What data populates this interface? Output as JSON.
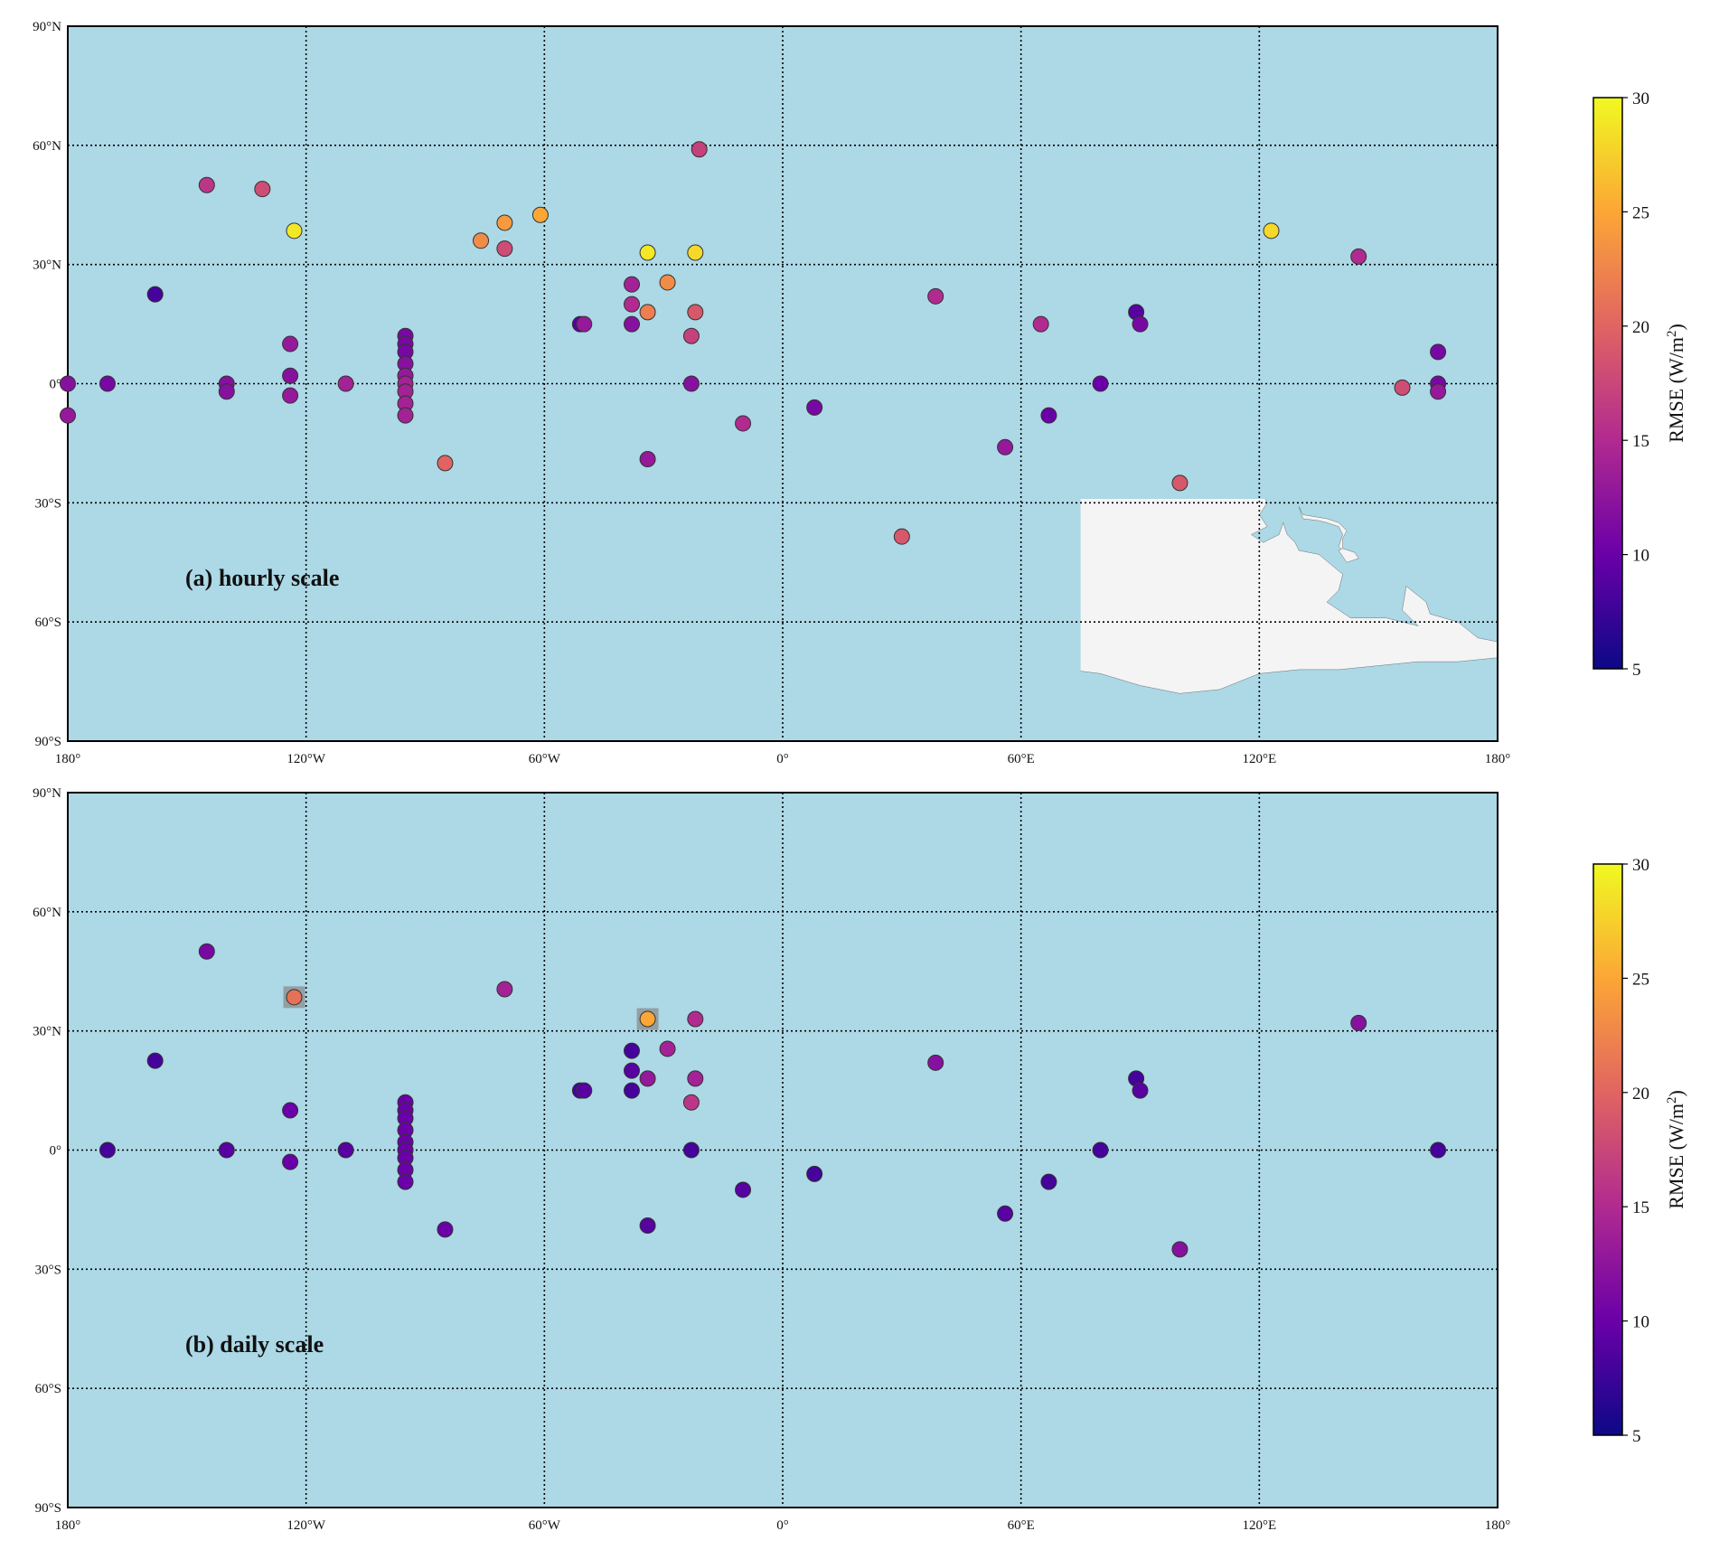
{
  "lat_ticks": [
    "90°N",
    "60°N",
    "30°N",
    "0°",
    "30°S",
    "60°S",
    "90°S"
  ],
  "lon_ticks": [
    "180°",
    "120°W",
    "60°W",
    "0°",
    "60°E",
    "120°E",
    "180°"
  ],
  "colors": {
    "ocean": "#add8e6",
    "land": "#f4f4f4",
    "coast": "#111111",
    "grid": "#000000",
    "highlight_box": "#8c8c8c",
    "colormap_stops": [
      "#0d0887",
      "#6a00a8",
      "#b12a90",
      "#e16462",
      "#fca636",
      "#f0f921"
    ]
  },
  "colorbar": {
    "label_main": "RMSE (W/m",
    "label_sup": "2",
    "label_end": ")",
    "ticks": [
      "5",
      "10",
      "15",
      "20",
      "25",
      "30"
    ],
    "min": 5,
    "max": 30
  },
  "chart_data": [
    {
      "type": "scatter",
      "title": "(a) hourly scale",
      "points": [
        [
          -145,
          50,
          16
        ],
        [
          -131,
          49,
          18
        ],
        [
          -123,
          38.5,
          29
        ],
        [
          -158,
          22.5,
          8
        ],
        [
          -124,
          10,
          13
        ],
        [
          -124,
          2,
          12
        ],
        [
          -124,
          -3,
          13
        ],
        [
          -180,
          0,
          12
        ],
        [
          -170,
          0,
          11
        ],
        [
          -140,
          0,
          12
        ],
        [
          -140,
          -2,
          12
        ],
        [
          -110,
          0,
          14
        ],
        [
          -180,
          -8,
          13
        ],
        [
          -95,
          12,
          11
        ],
        [
          -95,
          10,
          11
        ],
        [
          -95,
          8,
          11
        ],
        [
          -95,
          5,
          12
        ],
        [
          -95,
          2,
          13
        ],
        [
          -95,
          0,
          14
        ],
        [
          -95,
          -2,
          14
        ],
        [
          -95,
          -5,
          14
        ],
        [
          -95,
          -8,
          14
        ],
        [
          -85,
          -20,
          20
        ],
        [
          -76,
          36,
          23
        ],
        [
          -70,
          40.5,
          24
        ],
        [
          -70,
          34,
          18
        ],
        [
          -61,
          42.5,
          25
        ],
        [
          -51,
          15,
          9
        ],
        [
          -50,
          15,
          13
        ],
        [
          -38,
          25,
          14
        ],
        [
          -38,
          20,
          15
        ],
        [
          -38,
          15,
          12
        ],
        [
          -34,
          33,
          29
        ],
        [
          -34,
          18,
          22
        ],
        [
          -34,
          -19,
          13
        ],
        [
          -29,
          25.5,
          23
        ],
        [
          -22,
          33,
          28
        ],
        [
          -22,
          18,
          19
        ],
        [
          -23,
          12,
          17
        ],
        [
          -23,
          0,
          12
        ],
        [
          -21,
          59,
          17
        ],
        [
          -10,
          -10,
          15
        ],
        [
          8,
          -6,
          11
        ],
        [
          30,
          -38.5,
          19
        ],
        [
          38.5,
          22,
          15
        ],
        [
          56,
          -16,
          13
        ],
        [
          65,
          15,
          15
        ],
        [
          67,
          -8,
          10
        ],
        [
          80,
          0,
          10
        ],
        [
          89,
          18,
          9
        ],
        [
          90,
          15,
          11
        ],
        [
          100,
          -25,
          19
        ],
        [
          123,
          38.5,
          28
        ],
        [
          145,
          32,
          15
        ],
        [
          156,
          -1,
          18
        ],
        [
          165,
          8,
          11
        ],
        [
          165,
          0,
          11
        ],
        [
          165,
          -2,
          13
        ]
      ],
      "zlabel": "RMSE (W/m2)",
      "zlim": [
        5,
        30
      ]
    },
    {
      "type": "scatter",
      "title": "(b) daily scale",
      "points": [
        [
          -145,
          50,
          11
        ],
        [
          -123,
          38.5,
          21
        ],
        [
          -158,
          22.5,
          8
        ],
        [
          -124,
          10,
          10
        ],
        [
          -124,
          -3,
          10
        ],
        [
          -170,
          0,
          8
        ],
        [
          -140,
          0,
          9
        ],
        [
          -110,
          0,
          9
        ],
        [
          -95,
          12,
          10
        ],
        [
          -95,
          10,
          10
        ],
        [
          -95,
          8,
          10
        ],
        [
          -95,
          5,
          10
        ],
        [
          -95,
          2,
          10
        ],
        [
          -95,
          0,
          10
        ],
        [
          -95,
          -2,
          10
        ],
        [
          -95,
          -5,
          10
        ],
        [
          -95,
          -8,
          10
        ],
        [
          -85,
          -20,
          10
        ],
        [
          -70,
          40.5,
          14
        ],
        [
          -51,
          15,
          8
        ],
        [
          -50,
          15,
          9
        ],
        [
          -38,
          25,
          8
        ],
        [
          -38,
          20,
          9
        ],
        [
          -38,
          15,
          8
        ],
        [
          -34,
          33,
          25
        ],
        [
          -34,
          18,
          13
        ],
        [
          -34,
          -19,
          9
        ],
        [
          -29,
          25.5,
          14
        ],
        [
          -22,
          33,
          15
        ],
        [
          -22,
          18,
          14
        ],
        [
          -23,
          12,
          16
        ],
        [
          -23,
          0,
          8
        ],
        [
          -10,
          -10,
          9
        ],
        [
          8,
          -6,
          8
        ],
        [
          38.5,
          22,
          12
        ],
        [
          56,
          -16,
          9
        ],
        [
          67,
          -8,
          8
        ],
        [
          80,
          0,
          8
        ],
        [
          89,
          18,
          8
        ],
        [
          90,
          15,
          9
        ],
        [
          100,
          -25,
          12
        ],
        [
          145,
          32,
          12
        ],
        [
          165,
          0,
          8
        ]
      ],
      "zlabel": "RMSE (W/m2)",
      "zlim": [
        5,
        30
      ],
      "highlighted_points": [
        [
          -123,
          38.5
        ],
        [
          -34,
          33
        ]
      ]
    }
  ]
}
